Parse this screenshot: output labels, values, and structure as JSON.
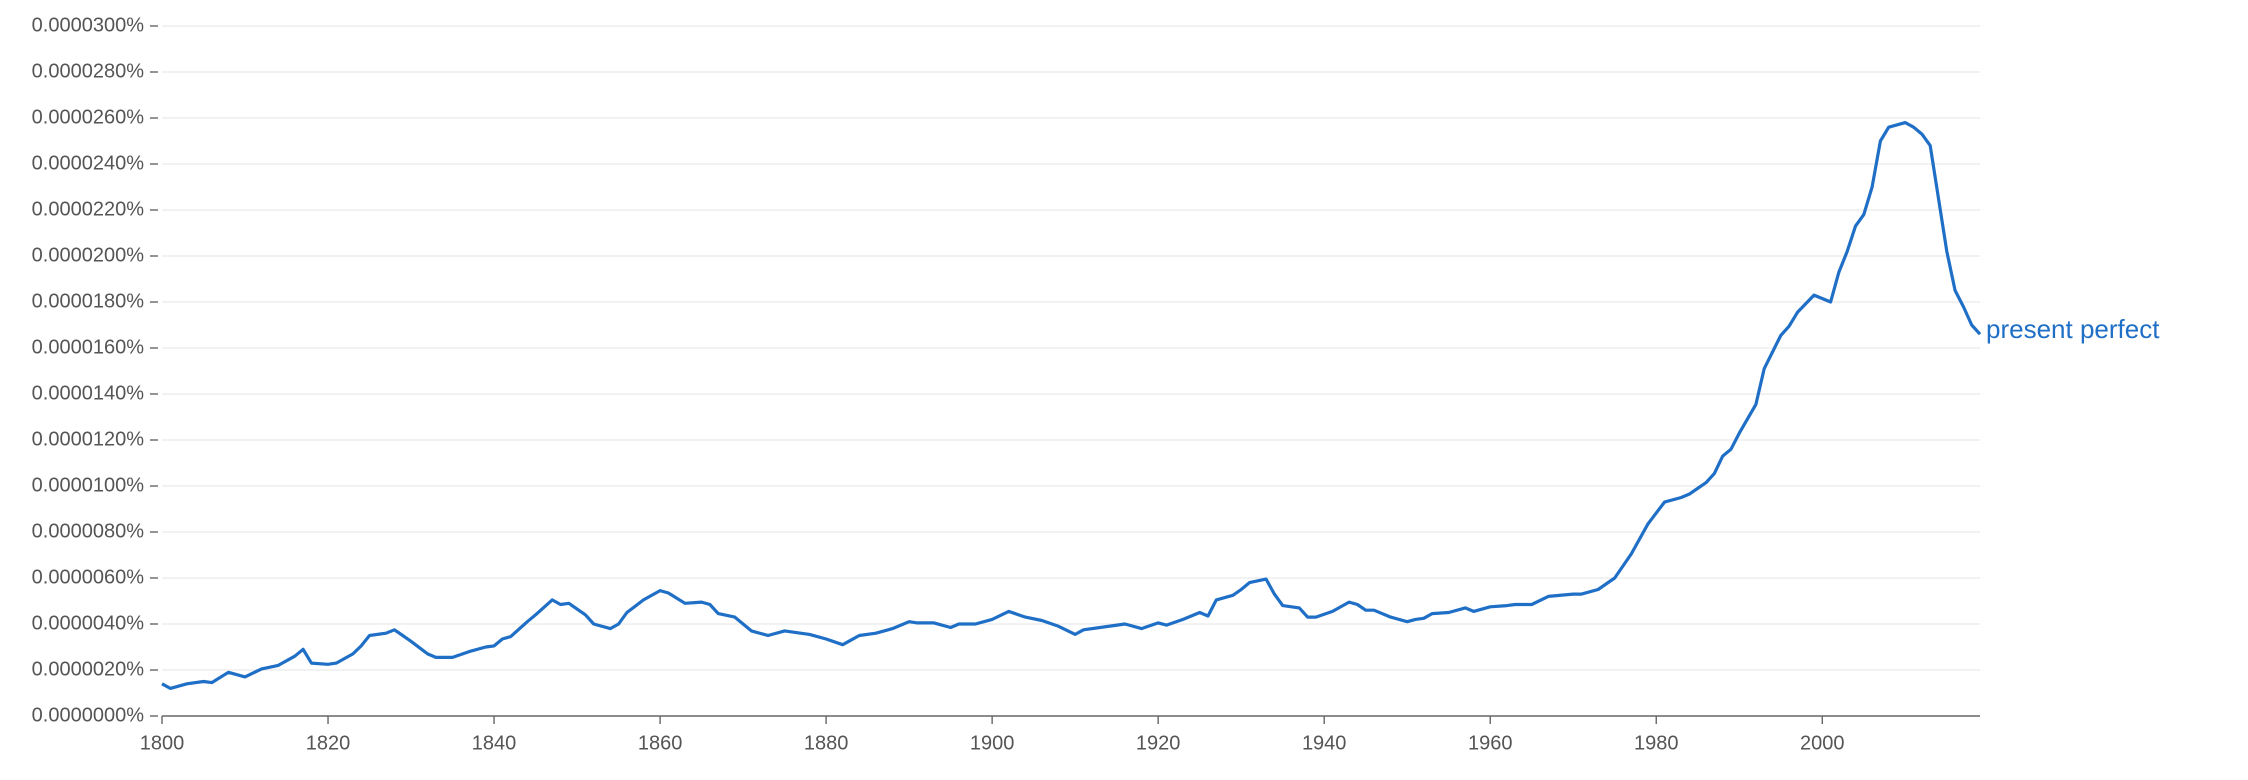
{
  "chart_data": {
    "type": "line",
    "x": [
      1800,
      1801,
      1803,
      1805,
      1806,
      1808,
      1810,
      1812,
      1814,
      1816,
      1817,
      1818,
      1820,
      1821,
      1823,
      1824,
      1825,
      1827,
      1828,
      1829,
      1830,
      1832,
      1833,
      1835,
      1837,
      1839,
      1840,
      1841,
      1842,
      1844,
      1845,
      1847,
      1848,
      1849,
      1851,
      1852,
      1854,
      1855,
      1856,
      1858,
      1860,
      1861,
      1863,
      1865,
      1866,
      1867,
      1869,
      1871,
      1873,
      1875,
      1878,
      1880,
      1882,
      1884,
      1886,
      1888,
      1890,
      1891,
      1893,
      1895,
      1896,
      1898,
      1900,
      1902,
      1904,
      1906,
      1908,
      1910,
      1911,
      1913,
      1916,
      1918,
      1920,
      1921,
      1923,
      1925,
      1926,
      1927,
      1929,
      1930,
      1931,
      1933,
      1934,
      1935,
      1937,
      1938,
      1939,
      1941,
      1943,
      1944,
      1945,
      1946,
      1948,
      1950,
      1951,
      1952,
      1953,
      1955,
      1957,
      1958,
      1960,
      1962,
      1963,
      1965,
      1967,
      1970,
      1971,
      1973,
      1975,
      1977,
      1979,
      1981,
      1983,
      1984,
      1986,
      1987,
      1988,
      1989,
      1990,
      1992,
      1993,
      1995,
      1996,
      1997,
      1999,
      2001,
      2002,
      2003,
      2004,
      2005,
      2006,
      2007,
      2008,
      2010,
      2011,
      2012,
      2013,
      2014,
      2015,
      2016,
      2017,
      2018,
      2019
    ],
    "series": [
      {
        "name": "present perfect",
        "color": "#1f6fc6",
        "values": [
          1.4e-06,
          1.2e-06,
          1.4e-06,
          1.5e-06,
          1.45e-06,
          1.9e-06,
          1.7e-06,
          2.05e-06,
          2.2e-06,
          2.6e-06,
          2.9e-06,
          2.3e-06,
          2.25e-06,
          2.3e-06,
          2.7e-06,
          3.05e-06,
          3.5e-06,
          3.6e-06,
          3.75e-06,
          3.5e-06,
          3.25e-06,
          2.7e-06,
          2.55e-06,
          2.55e-06,
          2.8e-06,
          3e-06,
          3.05e-06,
          3.35e-06,
          3.45e-06,
          4.1e-06,
          4.4e-06,
          5.05e-06,
          4.85e-06,
          4.9e-06,
          4.4e-06,
          4e-06,
          3.8e-06,
          4e-06,
          4.5e-06,
          5.05e-06,
          5.45e-06,
          5.35e-06,
          4.9e-06,
          4.95e-06,
          4.85e-06,
          4.45e-06,
          4.3e-06,
          3.7e-06,
          3.5e-06,
          3.7e-06,
          3.55e-06,
          3.35e-06,
          3.1e-06,
          3.5e-06,
          3.6e-06,
          3.8e-06,
          4.1e-06,
          4.05e-06,
          4.05e-06,
          3.85e-06,
          4e-06,
          4e-06,
          4.2e-06,
          4.55e-06,
          4.3e-06,
          4.15e-06,
          3.9e-06,
          3.55e-06,
          3.75e-06,
          3.85e-06,
          4e-06,
          3.8e-06,
          4.05e-06,
          3.95e-06,
          4.2e-06,
          4.5e-06,
          4.35e-06,
          5.05e-06,
          5.25e-06,
          5.5e-06,
          5.8e-06,
          5.95e-06,
          5.3e-06,
          4.8e-06,
          4.7e-06,
          4.3e-06,
          4.3e-06,
          4.55e-06,
          4.95e-06,
          4.85e-06,
          4.6e-06,
          4.6e-06,
          4.3e-06,
          4.1e-06,
          4.2e-06,
          4.25e-06,
          4.45e-06,
          4.5e-06,
          4.7e-06,
          4.55e-06,
          4.75e-06,
          4.8e-06,
          4.85e-06,
          4.85e-06,
          5.2e-06,
          5.3e-06,
          5.3e-06,
          5.5e-06,
          6e-06,
          7.05e-06,
          8.35e-06,
          9.3e-06,
          9.5e-06,
          9.65e-06,
          1.015e-05,
          1.055e-05,
          1.13e-05,
          1.16e-05,
          1.23e-05,
          1.355e-05,
          1.51e-05,
          1.655e-05,
          1.695e-05,
          1.755e-05,
          1.83e-05,
          1.8e-05,
          1.93e-05,
          2.02e-05,
          2.13e-05,
          2.18e-05,
          2.3e-05,
          2.5e-05,
          2.56e-05,
          2.58e-05,
          2.56e-05,
          2.53e-05,
          2.48e-05,
          2.25e-05,
          2.02e-05,
          1.85e-05,
          1.78e-05,
          1.7e-05,
          1.66e-05
        ]
      }
    ],
    "xlim": [
      1800,
      2019
    ],
    "xticks": [
      1800,
      1820,
      1840,
      1860,
      1880,
      1900,
      1920,
      1940,
      1960,
      1980,
      2000
    ],
    "ylim": [
      0,
      3e-05
    ],
    "yticks": [
      {
        "value": 0,
        "label": "0.0000000%"
      },
      {
        "value": 2e-06,
        "label": "0.0000020%"
      },
      {
        "value": 4e-06,
        "label": "0.0000040%"
      },
      {
        "value": 6e-06,
        "label": "0.0000060%"
      },
      {
        "value": 8e-06,
        "label": "0.0000080%"
      },
      {
        "value": 1e-05,
        "label": "0.0000100%"
      },
      {
        "value": 1.2e-05,
        "label": "0.0000120%"
      },
      {
        "value": 1.4e-05,
        "label": "0.0000140%"
      },
      {
        "value": 1.6e-05,
        "label": "0.0000160%"
      },
      {
        "value": 1.8e-05,
        "label": "0.0000180%"
      },
      {
        "value": 2e-05,
        "label": "0.0000200%"
      },
      {
        "value": 2.2e-05,
        "label": "0.0000220%"
      },
      {
        "value": 2.4e-05,
        "label": "0.0000240%"
      },
      {
        "value": 2.6e-05,
        "label": "0.0000260%"
      },
      {
        "value": 2.8e-05,
        "label": "0.0000280%"
      },
      {
        "value": 3e-05,
        "label": "0.0000300%"
      }
    ],
    "grid": true
  }
}
